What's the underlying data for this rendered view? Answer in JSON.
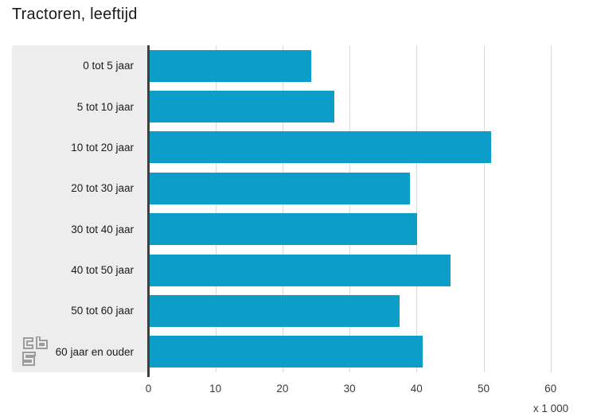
{
  "title": "Tractoren, leeftijd",
  "chart_data": {
    "type": "bar",
    "orientation": "horizontal",
    "title": "Tractoren, leeftijd",
    "categories": [
      "0 tot 5 jaar",
      "5 tot 10 jaar",
      "10 tot 20 jaar",
      "20 tot 30 jaar",
      "30 tot 40 jaar",
      "40 tot 50 jaar",
      "50 tot 60 jaar",
      "60 jaar en ouder"
    ],
    "values": [
      24.1,
      27.5,
      50.9,
      38.8,
      39.9,
      44.9,
      37.3,
      40.7
    ],
    "x_ticks": [
      0,
      10,
      20,
      30,
      40,
      50,
      60
    ],
    "xlim": [
      0,
      60
    ],
    "xlabel": "x 1 000",
    "ylabel": "",
    "grid": true,
    "legend": "none",
    "bar_color": "#0d9dc9",
    "panel_color": "#ededed",
    "gridline_color": "#d9d9d9",
    "axis_line_color": "#3f3f3f"
  },
  "logo": {
    "name": "cbs-logo",
    "color": "#9c9c9c"
  }
}
